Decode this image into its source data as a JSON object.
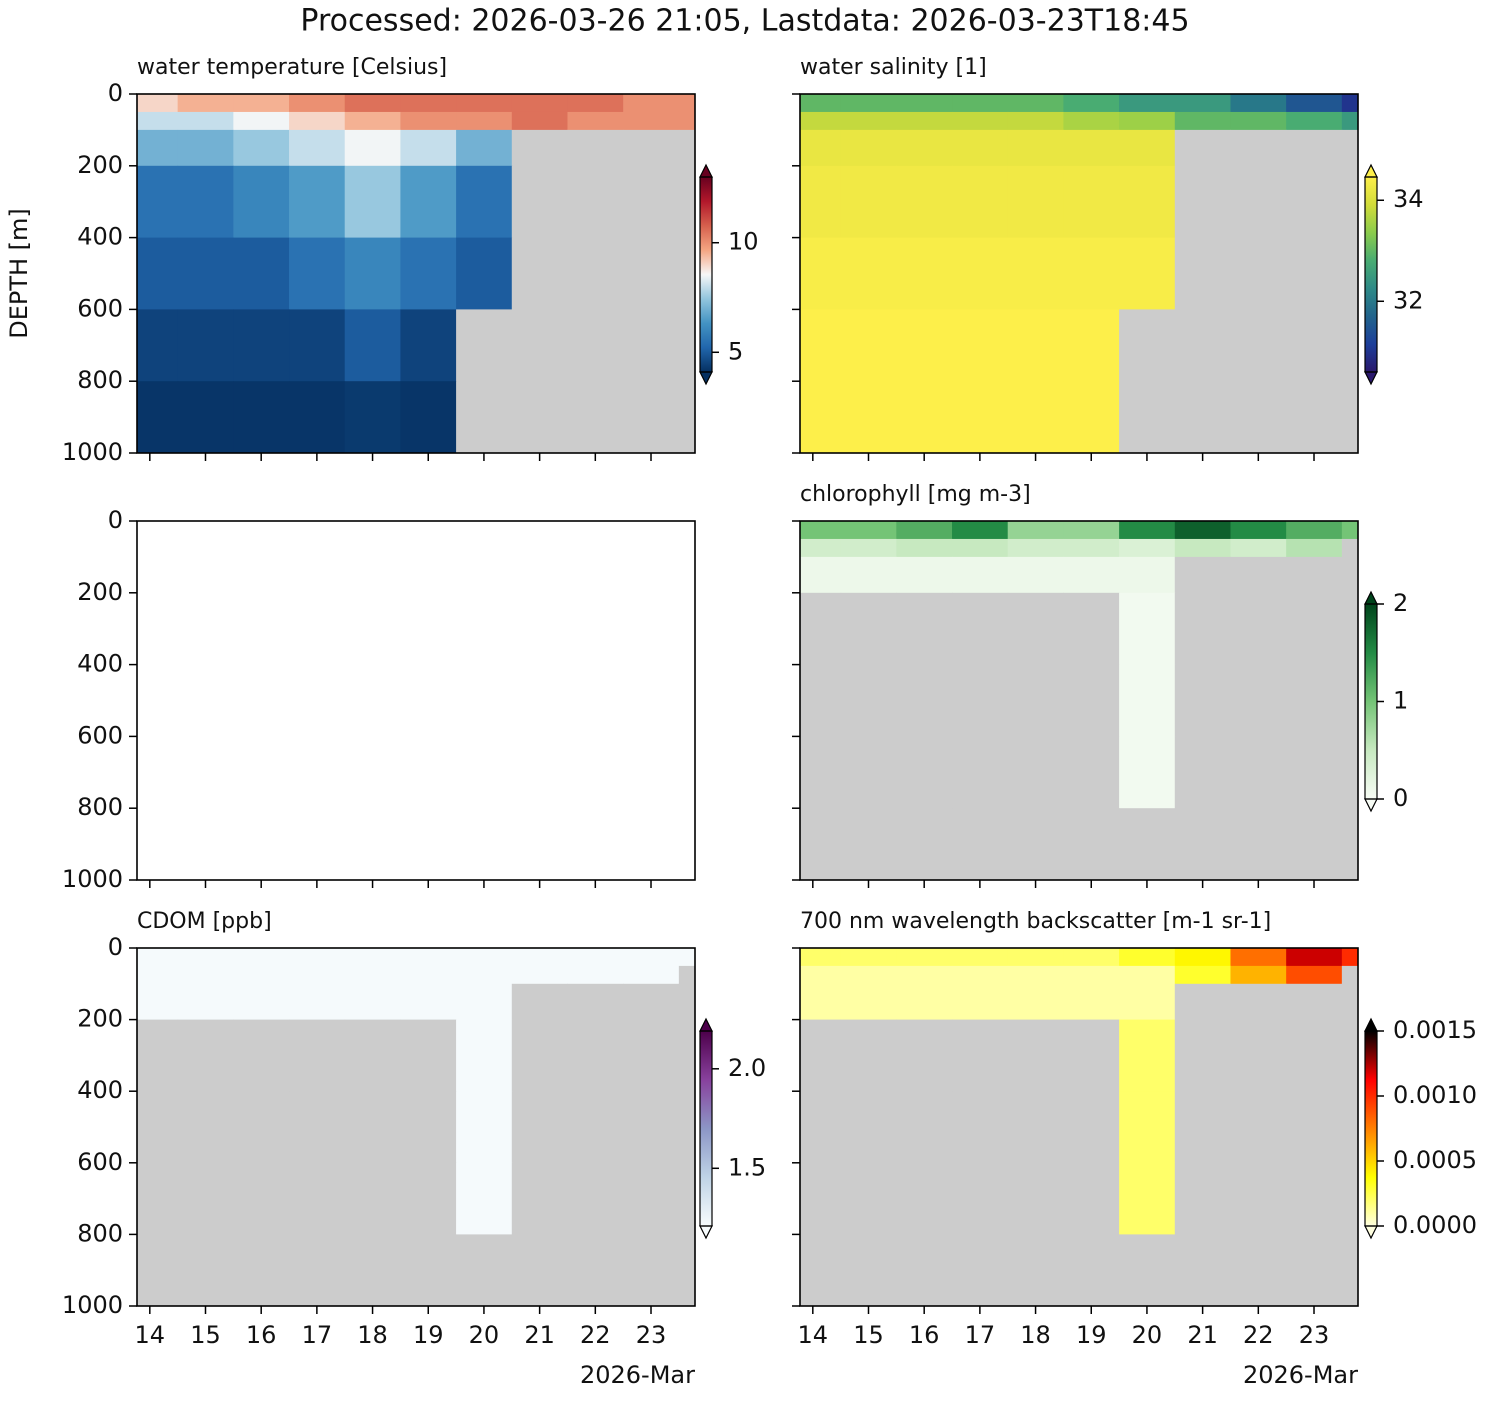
{
  "title": "Processed: 2026-03-26 21:05, Lastdata: 2026-03-23T18:45",
  "chart_data": [
    {
      "type": "heatmap",
      "title": "water temperature [Celsius]",
      "ylabel": "DEPTH [m]",
      "xlim": [
        13.77,
        23.79
      ],
      "ylim": [
        1000,
        0
      ],
      "xticks": [
        14,
        15,
        16,
        17,
        18,
        19,
        20,
        21,
        22,
        23
      ],
      "yticks": [
        0,
        200,
        400,
        600,
        800,
        1000
      ],
      "x_edges": [
        13.77,
        14.5,
        15.5,
        16.5,
        17.5,
        18.5,
        19.5,
        20.5,
        21.5,
        22.5,
        23.5,
        23.79
      ],
      "y_edges": [
        0,
        50,
        100,
        200,
        400,
        600,
        800,
        1000
      ],
      "values": [
        [
          9,
          9.5,
          9.5,
          10,
          10.5,
          10.5,
          10.5,
          10.5,
          10.5,
          10,
          10
        ],
        [
          8,
          8,
          8.5,
          9,
          9.5,
          10,
          10,
          10.5,
          10,
          10,
          10
        ],
        [
          7,
          7,
          7.5,
          8,
          8.5,
          8,
          7,
          null,
          null,
          null,
          null
        ],
        [
          5.5,
          5.5,
          6,
          6.5,
          7.5,
          6.5,
          5.5,
          null,
          null,
          null,
          null
        ],
        [
          5,
          5,
          5,
          5.5,
          6,
          5.5,
          5,
          null,
          null,
          null,
          null
        ],
        [
          4.5,
          4.5,
          4.5,
          4.5,
          5,
          4.5,
          null,
          null,
          null,
          null,
          null
        ],
        [
          4.2,
          4.2,
          4.2,
          4.2,
          4.3,
          4.2,
          null,
          null,
          null,
          null,
          null
        ]
      ],
      "clim": [
        4.1,
        13
      ],
      "cticks": [
        5,
        10
      ],
      "colors": [
        "#053061",
        "#2166ac",
        "#4393c3",
        "#92c5de",
        "#f7f7f7",
        "#f4a582",
        "#d6604d",
        "#b2182b",
        "#67001f"
      ],
      "missing_color": "#cccccc"
    },
    {
      "type": "heatmap",
      "title": "water salinity [1]",
      "xlim": [
        13.77,
        23.79
      ],
      "ylim": [
        1000,
        0
      ],
      "xticks": [
        14,
        15,
        16,
        17,
        18,
        19,
        20,
        21,
        22,
        23
      ],
      "yticks": [
        0,
        200,
        400,
        600,
        800,
        1000
      ],
      "x_edges": [
        13.77,
        14.5,
        15.5,
        16.5,
        17.5,
        18.5,
        19.5,
        20.5,
        21.5,
        22.5,
        23.5,
        23.79
      ],
      "y_edges": [
        0,
        50,
        100,
        200,
        400,
        600,
        800,
        1000
      ],
      "values": [
        [
          33,
          33,
          33,
          33,
          33,
          32.8,
          32.5,
          32.5,
          32,
          31.5,
          31
        ],
        [
          33.8,
          33.8,
          33.8,
          33.8,
          33.8,
          33.6,
          33.5,
          33,
          33,
          32.8,
          32.5
        ],
        [
          34.2,
          34.2,
          34.2,
          34.2,
          34.2,
          34.2,
          34.2,
          null,
          null,
          null,
          null
        ],
        [
          34.3,
          34.3,
          34.3,
          34.3,
          34.3,
          34.3,
          34.3,
          null,
          null,
          null,
          null
        ],
        [
          34.4,
          34.4,
          34.4,
          34.4,
          34.4,
          34.4,
          34.4,
          null,
          null,
          null,
          null
        ],
        [
          34.5,
          34.5,
          34.5,
          34.5,
          34.5,
          34.5,
          null,
          null,
          null,
          null,
          null
        ],
        [
          34.6,
          34.6,
          34.6,
          34.6,
          34.6,
          34.6,
          null,
          null,
          null,
          null,
          null
        ]
      ],
      "clim": [
        30.6,
        34.46
      ],
      "cticks": [
        32,
        34
      ],
      "colors": [
        "#2a186c",
        "#1d3f9a",
        "#22648c",
        "#2e8a87",
        "#49ac72",
        "#8bcc4c",
        "#d2dc3a",
        "#fdef4a"
      ],
      "missing_color": "#cccccc"
    },
    {
      "type": "heatmap",
      "xlim": [
        13.77,
        23.79
      ],
      "ylim": [
        1000,
        0
      ],
      "xticks": [
        14,
        15,
        16,
        17,
        18,
        19,
        20,
        21,
        22,
        23
      ],
      "yticks": [
        0,
        200,
        400,
        600,
        800,
        1000
      ]
    },
    {
      "type": "heatmap",
      "title": "chlorophyll [mg m-3]",
      "xlim": [
        13.77,
        23.79
      ],
      "ylim": [
        1000,
        0
      ],
      "xticks": [
        14,
        15,
        16,
        17,
        18,
        19,
        20,
        21,
        22,
        23
      ],
      "yticks": [
        0,
        200,
        400,
        600,
        800,
        1000
      ],
      "x_edges": [
        13.77,
        14.5,
        15.5,
        16.5,
        17.5,
        18.5,
        19.5,
        20.5,
        21.5,
        22.5,
        23.5,
        23.79
      ],
      "y_edges": [
        0,
        50,
        100,
        200,
        400,
        600,
        800,
        1000
      ],
      "values": [
        [
          1,
          1,
          1.2,
          1.5,
          0.8,
          0.8,
          1.5,
          1.8,
          1.5,
          1.2,
          1
        ],
        [
          0.4,
          0.4,
          0.5,
          0.5,
          0.4,
          0.4,
          0.3,
          0.5,
          0.4,
          0.6,
          null
        ],
        [
          0.1,
          0.1,
          0.1,
          0.1,
          0.1,
          0.1,
          0.1,
          null,
          null,
          null,
          null
        ],
        [
          null,
          null,
          null,
          null,
          null,
          null,
          0.05,
          null,
          null,
          null,
          null
        ],
        [
          null,
          null,
          null,
          null,
          null,
          null,
          0.05,
          null,
          null,
          null,
          null
        ],
        [
          null,
          null,
          null,
          null,
          null,
          null,
          0.05,
          null,
          null,
          null,
          null
        ],
        [
          null,
          null,
          null,
          null,
          null,
          null,
          null,
          null,
          null,
          null,
          null
        ]
      ],
      "clim": [
        0,
        2
      ],
      "cticks": [
        0,
        1,
        2
      ],
      "colors": [
        "#f7fcf5",
        "#c7e9c0",
        "#74c476",
        "#238b45",
        "#00441b"
      ],
      "missing_color": "#cccccc"
    },
    {
      "type": "heatmap",
      "title": "CDOM [ppb]",
      "xlim": [
        13.77,
        23.79
      ],
      "ylim": [
        1000,
        0
      ],
      "xticks": [
        14,
        15,
        16,
        17,
        18,
        19,
        20,
        21,
        22,
        23
      ],
      "yticks": [
        0,
        200,
        400,
        600,
        800,
        1000
      ],
      "x_offset_label": "2026-Mar",
      "x_edges": [
        13.77,
        14.5,
        15.5,
        16.5,
        17.5,
        18.5,
        19.5,
        20.5,
        21.5,
        22.5,
        23.5,
        23.79
      ],
      "y_edges": [
        0,
        50,
        100,
        200,
        400,
        600,
        800,
        1000
      ],
      "values": [
        [
          1.22,
          1.22,
          1.22,
          1.22,
          1.22,
          1.22,
          1.22,
          1.22,
          1.22,
          1.22,
          1.22
        ],
        [
          1.22,
          1.22,
          1.22,
          1.22,
          1.22,
          1.22,
          1.22,
          1.22,
          1.22,
          1.22,
          null
        ],
        [
          1.22,
          1.22,
          1.22,
          1.22,
          1.22,
          1.22,
          1.22,
          null,
          null,
          null,
          null
        ],
        [
          null,
          null,
          null,
          null,
          null,
          null,
          1.22,
          null,
          null,
          null,
          null
        ],
        [
          null,
          null,
          null,
          null,
          null,
          null,
          1.22,
          null,
          null,
          null,
          null
        ],
        [
          null,
          null,
          null,
          null,
          null,
          null,
          1.22,
          null,
          null,
          null,
          null
        ],
        [
          null,
          null,
          null,
          null,
          null,
          null,
          null,
          null,
          null,
          null,
          null
        ]
      ],
      "clim": [
        1.21,
        2.19
      ],
      "cticks": [
        1.5,
        {
          "value": 2,
          "label": "2.0"
        }
      ],
      "colors": [
        "#f7fcfd",
        "#bfd3e6",
        "#8c96c6",
        "#88419d",
        "#4d004b"
      ],
      "missing_color": "#cccccc"
    },
    {
      "type": "heatmap",
      "title": "700 nm wavelength backscatter [m-1 sr-1]",
      "xlim": [
        13.77,
        23.79
      ],
      "ylim": [
        1000,
        0
      ],
      "xticks": [
        14,
        15,
        16,
        17,
        18,
        19,
        20,
        21,
        22,
        23
      ],
      "yticks": [
        0,
        200,
        400,
        600,
        800,
        1000
      ],
      "x_offset_label": "2026-Mar",
      "x_edges": [
        13.77,
        14.5,
        15.5,
        16.5,
        17.5,
        18.5,
        19.5,
        20.5,
        21.5,
        22.5,
        23.5,
        23.79
      ],
      "y_edges": [
        0,
        50,
        100,
        200,
        400,
        600,
        800,
        1000
      ],
      "values": [
        [
          0.0002,
          0.0002,
          0.0002,
          0.0002,
          0.0002,
          0.0002,
          0.0003,
          0.0004,
          0.0008,
          0.0012,
          0.001
        ],
        [
          0.0001,
          0.0001,
          0.0001,
          0.0001,
          0.0001,
          0.0001,
          0.0001,
          0.0003,
          0.0006,
          0.0009,
          null
        ],
        [
          0.0001,
          0.0001,
          0.0001,
          0.0001,
          0.0001,
          0.0001,
          0.0001,
          null,
          null,
          null,
          null
        ],
        [
          null,
          null,
          null,
          null,
          null,
          null,
          0.0002,
          null,
          null,
          null,
          null
        ],
        [
          null,
          null,
          null,
          null,
          null,
          null,
          0.0002,
          null,
          null,
          null,
          null
        ],
        [
          null,
          null,
          null,
          null,
          null,
          null,
          0.0002,
          null,
          null,
          null,
          null
        ],
        [
          null,
          null,
          null,
          null,
          null,
          null,
          null,
          null,
          null,
          null,
          null
        ]
      ],
      "clim": [
        0,
        0.0015
      ],
      "cticks": [
        {
          "value": 0,
          "label": "0.0000"
        },
        {
          "value": 0.0005,
          "label": "0.0005"
        },
        {
          "value": 0.001,
          "label": "0.0010"
        },
        {
          "value": 0.0015,
          "label": "0.0015"
        }
      ],
      "colors": [
        "#ffffe0",
        "#ffff00",
        "#ff8000",
        "#ff0000",
        "#000000"
      ],
      "missing_color": "#cccccc"
    }
  ]
}
